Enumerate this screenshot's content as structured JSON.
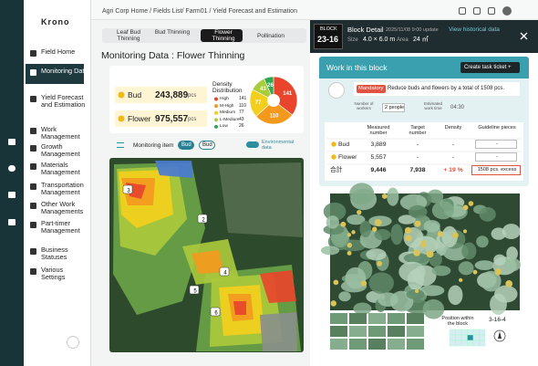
{
  "sidebar": {
    "logo": "Krono",
    "menu": [
      "Field Home",
      "Monitoring Data",
      "Yield Forecast and Estimation",
      "Work Management",
      "Growth Management",
      "Materials Management",
      "Transportation Management",
      "Other Work Managements",
      "Part-timer Management",
      "Business Statuses",
      "Various Settings"
    ]
  },
  "header": {
    "breadcrumb": "Agri Corp Home / Fields List/ Farm01 / Yield Forecast and Estimation"
  },
  "tabs": [
    "Leaf Bud Thinning",
    "Bud Thinning",
    "Flower Thinning",
    "Pollination"
  ],
  "monitoring": {
    "title": "Monitoring Data : Flower Thinning",
    "bud": {
      "label": "Bud",
      "count": "243,889",
      "unit": "pcs"
    },
    "flower": {
      "label": "Flower",
      "count": "975,557",
      "unit": "pcs"
    },
    "density": {
      "title": "Density Distribution",
      "levels": [
        {
          "name": "High",
          "value": 141,
          "color": "#e8452c"
        },
        {
          "name": "M-High",
          "value": 110,
          "color": "#f39a1e"
        },
        {
          "name": "Medium",
          "value": 77,
          "color": "#f2cf1d"
        },
        {
          "name": "L-Medium",
          "value": 43,
          "color": "#a8cc3a"
        },
        {
          "name": "Low",
          "value": 26,
          "color": "#2fa84f"
        }
      ]
    },
    "item_label": "Monitoring item",
    "item_buttons": [
      "Bud",
      "Bud"
    ],
    "env_label": "Environmental data",
    "map_markers": [
      "3",
      "2",
      "4",
      "5",
      "6"
    ]
  },
  "block": {
    "badge_label": "BLOCK",
    "id": "23-16",
    "title": "Block Detail",
    "updated": "2025/11/08 9:00 update",
    "history_link": "View historical data",
    "size_label": "Size",
    "size": "4.0 × 6.0 m",
    "area_label": "Area",
    "area": "24 ㎡"
  },
  "work": {
    "title": "Work in this block",
    "button": "Create task ticket +",
    "tag": "Mandatory",
    "message": "Reduce buds and flowers by a total of 1508 pcs.",
    "workers_label": "Number of workers",
    "workers": "2 people",
    "time_label": "Estimated work time",
    "time": "04:30"
  },
  "table": {
    "headers": [
      "Measured number",
      "Target number",
      "Density",
      "Guideline pieces"
    ],
    "rows": [
      [
        "Bud",
        "3,889",
        "-",
        "-",
        "-"
      ],
      [
        "Flower",
        "5,557",
        "-",
        "-",
        "-"
      ],
      [
        "合計",
        "9,446",
        "7,938",
        "+ 19 %",
        "1508 pcs. excess"
      ]
    ]
  },
  "photo": {
    "position_label": "Position within the block",
    "position": "3-16-4"
  }
}
